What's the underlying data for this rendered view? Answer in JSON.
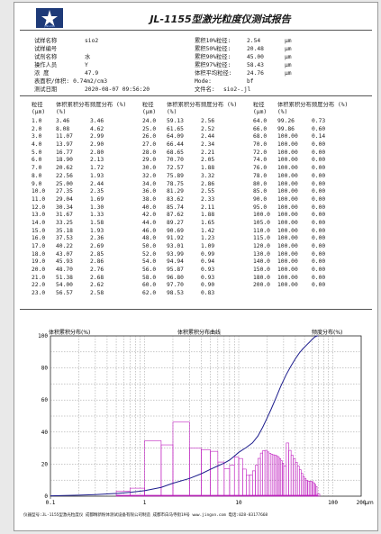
{
  "report": {
    "title": "JL-1155型激光粒度仪测试报告",
    "logo_text": "JINGXIN"
  },
  "meta_left": [
    {
      "label": "试样名称",
      "value": "sio2"
    },
    {
      "label": "试样编号",
      "value": ""
    },
    {
      "label": "试剂名称",
      "value": "水"
    },
    {
      "label": "操作人员",
      "value": "Y"
    },
    {
      "label": "浓    度",
      "value": "47.9"
    },
    {
      "label": "表面积/体积:",
      "value": "0.74m2/cm3"
    },
    {
      "label": "测试日期",
      "value": "2020-08-07   09:56:20"
    }
  ],
  "meta_right": [
    {
      "label": "累积10%粒径:",
      "value": "2.54",
      "unit": "μm"
    },
    {
      "label": "累积50%粒径:",
      "value": "20.48",
      "unit": "μm"
    },
    {
      "label": "累积90%粒径:",
      "value": "45.00",
      "unit": "μm"
    },
    {
      "label": "累积97%粒径:",
      "value": "58.43",
      "unit": "μm"
    },
    {
      "label": "体积平均粒径:",
      "value": "24.76",
      "unit": "μm"
    },
    {
      "label": "Mode:",
      "value": "bf",
      "unit": ""
    },
    {
      "label": "文件名:",
      "value": "sio2-.jl",
      "unit": ""
    }
  ],
  "table": {
    "headers": [
      "粒径 (μm)",
      "体积累积分布 (%)",
      "频度分布 (%)"
    ],
    "col1": [
      [
        "1.0",
        "3.46",
        "3.46"
      ],
      [
        "2.0",
        "8.08",
        "4.62"
      ],
      [
        "3.0",
        "11.07",
        "2.99"
      ],
      [
        "4.0",
        "13.97",
        "2.90"
      ],
      [
        "5.0",
        "16.77",
        "2.80"
      ],
      [
        "6.0",
        "18.90",
        "2.13"
      ],
      [
        "7.0",
        "20.62",
        "1.72"
      ],
      [
        "8.0",
        "22.56",
        "1.93"
      ],
      [
        "9.0",
        "25.00",
        "2.44"
      ],
      [
        "10.0",
        "27.35",
        "2.35"
      ],
      [
        "11.0",
        "29.04",
        "1.69"
      ],
      [
        "12.0",
        "30.34",
        "1.30"
      ],
      [
        "13.0",
        "31.67",
        "1.33"
      ],
      [
        "14.0",
        "33.25",
        "1.58"
      ],
      [
        "15.0",
        "35.18",
        "1.93"
      ],
      [
        "16.0",
        "37.53",
        "2.36"
      ],
      [
        "17.0",
        "40.22",
        "2.69"
      ],
      [
        "18.0",
        "43.07",
        "2.85"
      ],
      [
        "19.0",
        "45.93",
        "2.86"
      ],
      [
        "20.0",
        "48.70",
        "2.76"
      ],
      [
        "21.0",
        "51.38",
        "2.68"
      ],
      [
        "22.0",
        "54.00",
        "2.62"
      ],
      [
        "23.0",
        "56.57",
        "2.58"
      ]
    ],
    "col2": [
      [
        "24.0",
        "59.13",
        "2.56"
      ],
      [
        "25.0",
        "61.65",
        "2.52"
      ],
      [
        "26.0",
        "64.09",
        "2.44"
      ],
      [
        "27.0",
        "66.44",
        "2.34"
      ],
      [
        "28.0",
        "68.65",
        "2.21"
      ],
      [
        "29.0",
        "70.70",
        "2.05"
      ],
      [
        "30.0",
        "72.57",
        "1.88"
      ],
      [
        "32.0",
        "75.89",
        "3.32"
      ],
      [
        "34.0",
        "78.75",
        "2.86"
      ],
      [
        "36.0",
        "81.29",
        "2.55"
      ],
      [
        "38.0",
        "83.62",
        "2.33"
      ],
      [
        "40.0",
        "85.74",
        "2.11"
      ],
      [
        "42.0",
        "87.62",
        "1.88"
      ],
      [
        "44.0",
        "89.27",
        "1.65"
      ],
      [
        "46.0",
        "90.69",
        "1.42"
      ],
      [
        "48.0",
        "91.92",
        "1.23"
      ],
      [
        "50.0",
        "93.01",
        "1.09"
      ],
      [
        "52.0",
        "93.99",
        "0.99"
      ],
      [
        "54.0",
        "94.94",
        "0.94"
      ],
      [
        "56.0",
        "95.87",
        "0.93"
      ],
      [
        "58.0",
        "96.80",
        "0.93"
      ],
      [
        "60.0",
        "97.70",
        "0.90"
      ],
      [
        "62.0",
        "98.53",
        "0.83"
      ]
    ],
    "col3": [
      [
        "64.0",
        "99.26",
        "0.73"
      ],
      [
        "66.0",
        "99.86",
        "0.60"
      ],
      [
        "68.0",
        "100.00",
        "0.14"
      ],
      [
        "70.0",
        "100.00",
        "0.00"
      ],
      [
        "72.0",
        "100.00",
        "0.00"
      ],
      [
        "74.0",
        "100.00",
        "0.00"
      ],
      [
        "76.0",
        "100.00",
        "0.00"
      ],
      [
        "78.0",
        "100.00",
        "0.00"
      ],
      [
        "80.0",
        "100.00",
        "0.00"
      ],
      [
        "85.0",
        "100.00",
        "0.00"
      ],
      [
        "90.0",
        "100.00",
        "0.00"
      ],
      [
        "95.0",
        "100.00",
        "0.00"
      ],
      [
        "100.0",
        "100.00",
        "0.00"
      ],
      [
        "105.0",
        "100.00",
        "0.00"
      ],
      [
        "110.0",
        "100.00",
        "0.00"
      ],
      [
        "115.0",
        "100.00",
        "0.00"
      ],
      [
        "120.0",
        "100.00",
        "0.00"
      ],
      [
        "130.0",
        "100.00",
        "0.00"
      ],
      [
        "140.0",
        "100.00",
        "0.00"
      ],
      [
        "150.0",
        "100.00",
        "0.00"
      ],
      [
        "180.0",
        "100.00",
        "0.00"
      ],
      [
        "200.0",
        "100.00",
        "0.00"
      ]
    ]
  },
  "chart_data": {
    "type": "line",
    "title": "体积累积分布曲线",
    "ylabel_left": "体积累积分布(%)",
    "ylabel_right": "频度分布(%)",
    "xlabel": "μm",
    "x_scale": "log",
    "xlim": [
      0.1,
      200
    ],
    "ylim": [
      0,
      100
    ],
    "x_ticks": [
      "0.1",
      "1",
      "10",
      "100",
      "200"
    ],
    "y_ticks": [
      "0",
      "20",
      "40",
      "60",
      "80",
      "100"
    ],
    "grid": true,
    "series": [
      {
        "name": "体积累积分布",
        "kind": "line",
        "color": "#1c1c8c",
        "x": [
          0.1,
          0.2,
          0.3,
          0.5,
          0.7,
          1,
          1.5,
          2,
          3,
          4,
          5,
          6,
          7,
          8,
          9,
          10,
          12,
          14,
          16,
          18,
          20,
          22,
          25,
          28,
          32,
          36,
          40,
          44,
          48,
          52,
          56,
          60,
          64,
          68,
          70
        ],
        "y": [
          0.2,
          0.6,
          1.0,
          1.7,
          2.4,
          3.46,
          5.5,
          8.08,
          11.07,
          13.97,
          16.77,
          18.9,
          20.62,
          22.56,
          25.0,
          27.35,
          30.34,
          33.25,
          37.53,
          43.07,
          48.7,
          54.0,
          61.65,
          68.65,
          75.89,
          81.29,
          85.74,
          89.27,
          91.92,
          93.99,
          95.87,
          97.7,
          99.26,
          100,
          100
        ]
      },
      {
        "name": "频度分布",
        "kind": "bar",
        "color": "#c020c0",
        "x": [
          0.5,
          0.7,
          1,
          1.5,
          2,
          3,
          4,
          5,
          6,
          7,
          8,
          9,
          10,
          11,
          12,
          13,
          14,
          15,
          16,
          17,
          18,
          19,
          20,
          21,
          22,
          23,
          24,
          25,
          26,
          27,
          28,
          29,
          30,
          32,
          34,
          36,
          38,
          40,
          42,
          44,
          46,
          48,
          50,
          52,
          54,
          56,
          58,
          60,
          62,
          64,
          66,
          68
        ],
        "y": [
          0.3,
          0.5,
          3.46,
          3.2,
          4.62,
          2.99,
          2.9,
          2.8,
          2.13,
          1.72,
          1.93,
          2.44,
          2.35,
          1.69,
          1.3,
          1.33,
          1.58,
          1.93,
          2.36,
          2.69,
          2.85,
          2.86,
          2.76,
          2.68,
          2.62,
          2.58,
          2.56,
          2.52,
          2.44,
          2.34,
          2.21,
          2.05,
          1.88,
          3.32,
          2.86,
          2.55,
          2.33,
          2.11,
          1.88,
          1.65,
          1.42,
          1.23,
          1.09,
          0.99,
          0.94,
          0.93,
          0.93,
          0.9,
          0.83,
          0.73,
          0.6,
          0.14
        ]
      }
    ]
  },
  "footer": "仪器型号:JL-1155型激光粒度仪  成都精新粉体测试设备有限公司制造   成都市白马寺街19号 www.jingxn.com 电话:028-83177668"
}
